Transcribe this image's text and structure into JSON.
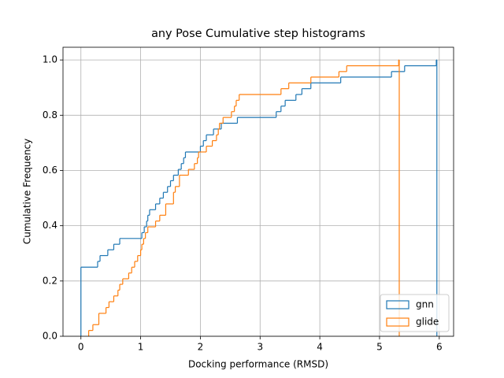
{
  "chart_data": {
    "type": "step_histogram",
    "title": "any Pose Cumulative step histograms",
    "xlabel": "Docking performance (RMSD)",
    "ylabel": "Cumulative Frequency",
    "xlim": [
      -0.3,
      6.24
    ],
    "ylim": [
      0,
      1.046
    ],
    "xticks": [
      0,
      1,
      2,
      3,
      4,
      5,
      6
    ],
    "yticks": [
      {
        "value": 0,
        "label": "0.0"
      },
      {
        "value": 0.2,
        "label": "0.2"
      },
      {
        "value": 0.4,
        "label": "0.4"
      },
      {
        "value": 0.6,
        "label": "0.6"
      },
      {
        "value": 0.8,
        "label": "0.8"
      },
      {
        "value": 1.0,
        "label": "1.0"
      }
    ],
    "grid": true,
    "legend": "lower right",
    "series": [
      {
        "name": "gnn",
        "color": "#1f77b4",
        "bins": [
          0,
          0.28,
          0.32,
          0.45,
          0.55,
          0.65,
          1.02,
          1.06,
          1.1,
          1.12,
          1.15,
          1.25,
          1.32,
          1.38,
          1.45,
          1.5,
          1.55,
          1.63,
          1.68,
          1.72,
          1.75,
          2.0,
          2.05,
          2.1,
          2.22,
          2.35,
          2.62,
          3.27,
          3.35,
          3.42,
          3.6,
          3.7,
          3.85,
          4.35,
          5.2,
          5.42,
          5.95,
          5.96
        ],
        "values": [
          0.25,
          0.271,
          0.292,
          0.313,
          0.333,
          0.354,
          0.375,
          0.396,
          0.417,
          0.438,
          0.458,
          0.479,
          0.5,
          0.521,
          0.542,
          0.563,
          0.583,
          0.604,
          0.625,
          0.646,
          0.667,
          0.688,
          0.708,
          0.729,
          0.75,
          0.771,
          0.792,
          0.813,
          0.833,
          0.854,
          0.875,
          0.896,
          0.917,
          0.938,
          0.958,
          0.979,
          1.0
        ]
      },
      {
        "name": "glide",
        "color": "#ff7f0e",
        "bins": [
          0.13,
          0.2,
          0.3,
          0.42,
          0.47,
          0.55,
          0.62,
          0.65,
          0.7,
          0.8,
          0.85,
          0.9,
          0.95,
          1.0,
          1.02,
          1.05,
          1.08,
          1.12,
          1.25,
          1.32,
          1.42,
          1.55,
          1.58,
          1.65,
          1.8,
          1.9,
          1.95,
          1.97,
          2.1,
          2.2,
          2.27,
          2.3,
          2.32,
          2.38,
          2.52,
          2.57,
          2.6,
          2.65,
          3.35,
          3.48,
          3.85,
          4.32,
          4.45,
          5.32,
          5.33
        ],
        "values": [
          0.021,
          0.042,
          0.083,
          0.104,
          0.125,
          0.146,
          0.167,
          0.188,
          0.208,
          0.229,
          0.25,
          0.271,
          0.292,
          0.313,
          0.333,
          0.354,
          0.375,
          0.396,
          0.417,
          0.438,
          0.479,
          0.521,
          0.542,
          0.583,
          0.604,
          0.625,
          0.646,
          0.667,
          0.688,
          0.708,
          0.729,
          0.75,
          0.771,
          0.792,
          0.813,
          0.833,
          0.854,
          0.875,
          0.896,
          0.917,
          0.938,
          0.958,
          0.979,
          1.0
        ]
      }
    ]
  }
}
